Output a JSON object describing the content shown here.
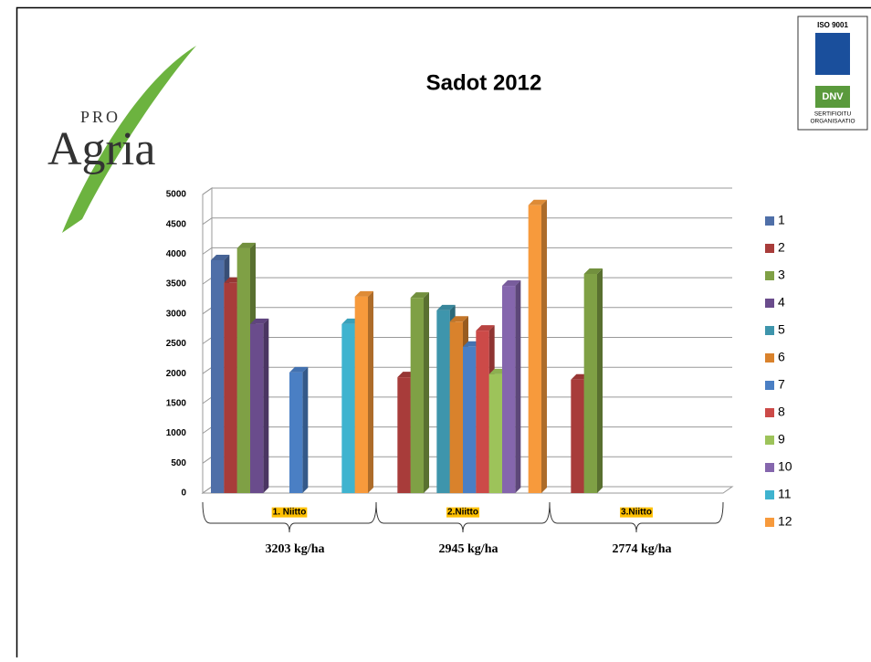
{
  "header": {
    "title": "Sadot 2012",
    "logo": {
      "small": "PRO",
      "large": "Agria"
    },
    "badge": {
      "top": "ISO 9001",
      "mid": "DNV",
      "line1": "SERTIFIOITU",
      "line2": "ORGANISAATIO"
    }
  },
  "chart_data": {
    "type": "bar3d",
    "categories": [
      "1. Niitto",
      "2.Niitto",
      "3.Niitto"
    ],
    "ylim": [
      0,
      5000
    ],
    "yticks": [
      0,
      500,
      1000,
      1500,
      2000,
      2500,
      3000,
      3500,
      4000,
      4500,
      5000
    ],
    "grid": true,
    "legend": "right",
    "series": [
      {
        "name": "1",
        "color": "#4f6fa8",
        "values": [
          3900,
          null,
          null
        ]
      },
      {
        "name": "2",
        "color": "#a83c3a",
        "values": [
          3520,
          1940,
          1900
        ]
      },
      {
        "name": "3",
        "color": "#7fa045",
        "values": [
          4100,
          3270,
          3670
        ]
      },
      {
        "name": "4",
        "color": "#6a4c8c",
        "values": [
          2830,
          null,
          null
        ]
      },
      {
        "name": "5",
        "color": "#3e95ac",
        "values": [
          null,
          3060,
          null
        ]
      },
      {
        "name": "6",
        "color": "#d9822c",
        "values": [
          null,
          2870,
          null
        ]
      },
      {
        "name": "7",
        "color": "#4a7fc4",
        "values": [
          2020,
          2450,
          null
        ]
      },
      {
        "name": "8",
        "color": "#cc4a48",
        "values": [
          null,
          2720,
          null
        ]
      },
      {
        "name": "9",
        "color": "#9dc35a",
        "values": [
          null,
          1990,
          null
        ]
      },
      {
        "name": "10",
        "color": "#8566ad",
        "values": [
          null,
          3470,
          null
        ]
      },
      {
        "name": "11",
        "color": "#3fb3cf",
        "values": [
          2830,
          null,
          null
        ]
      },
      {
        "name": "12",
        "color": "#f79a3c",
        "values": [
          3290,
          4820,
          null
        ]
      }
    ],
    "annotations": [
      "3203 kg/ha",
      "2945 kg/ha",
      "2774 kg/ha"
    ]
  }
}
